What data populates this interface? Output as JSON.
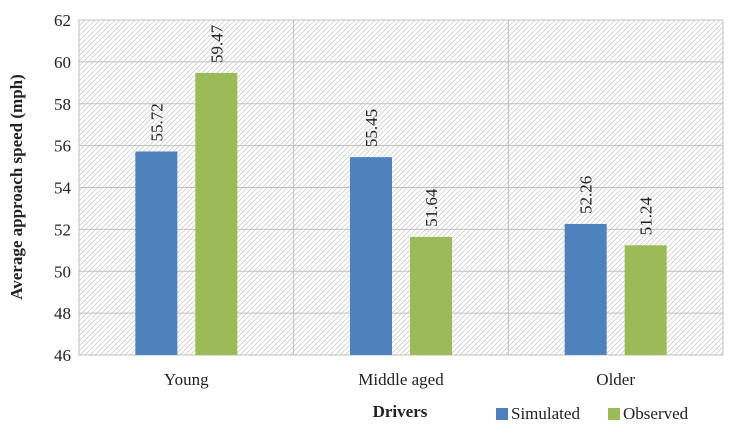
{
  "chart_data": {
    "type": "bar",
    "categories": [
      "Young",
      "Middle aged",
      "Older"
    ],
    "series": [
      {
        "name": "Simulated",
        "values": [
          55.72,
          55.45,
          52.26
        ],
        "color": "#4F81BD"
      },
      {
        "name": "Observed",
        "values": [
          59.47,
          51.64,
          51.24
        ],
        "color": "#9BBB59"
      }
    ],
    "data_labels": [
      [
        "55.72",
        "55.45",
        "52.26"
      ],
      [
        "59.47",
        "51.64",
        "51.24"
      ]
    ],
    "xlabel": "Drivers",
    "ylabel": "Average approach speed (mph)",
    "ylim": [
      46,
      62
    ],
    "yticks": [
      46,
      48,
      50,
      52,
      54,
      56,
      58,
      60,
      62
    ],
    "grid": true,
    "plot_background": "hatched",
    "legend_position": "bottom-right"
  }
}
